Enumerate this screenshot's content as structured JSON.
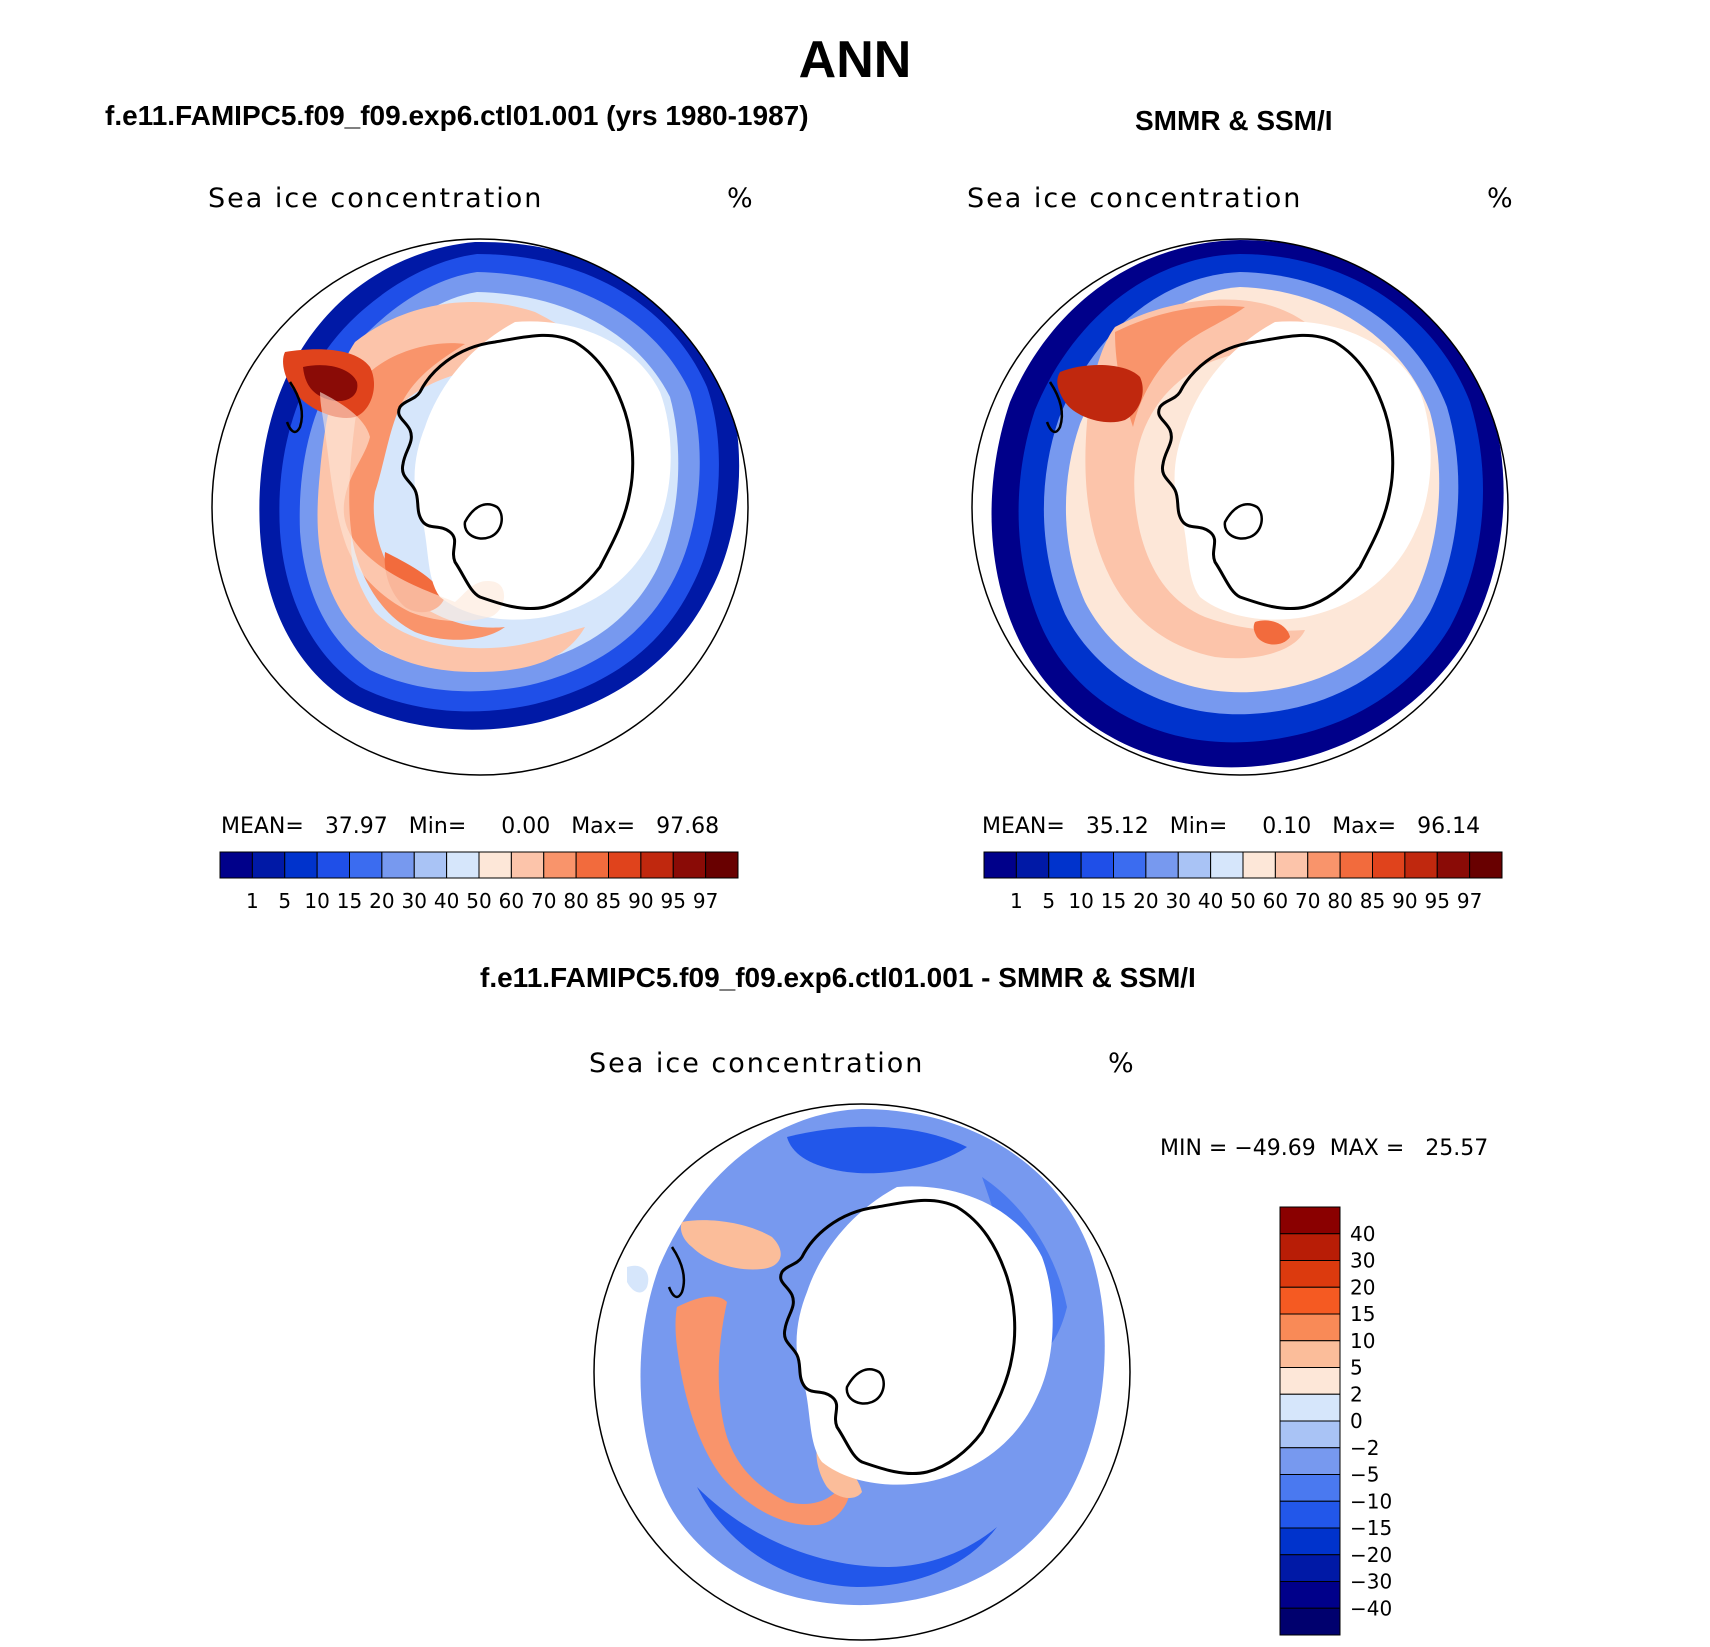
{
  "figure": {
    "title": "ANN",
    "panels": [
      {
        "id": "model",
        "title": "f.e11.FAMIPC5.f09_f09.exp6.ctl01.001 (yrs 1980-1987)",
        "variable": "Sea ice concentration",
        "units": "%",
        "stats": {
          "mean_label": "MEAN=",
          "mean": "37.97",
          "min_label": "Min=",
          "min": "0.00",
          "max_label": "Max=",
          "max": "97.68"
        }
      },
      {
        "id": "obs",
        "title": "SMMR & SSM/I",
        "variable": "Sea ice concentration",
        "units": "%",
        "stats": {
          "mean_label": "MEAN=",
          "mean": "35.12",
          "min_label": "Min=",
          "min": "0.10",
          "max_label": "Max=",
          "max": "96.14"
        }
      },
      {
        "id": "diff",
        "title": "f.e11.FAMIPC5.f09_f09.exp6.ctl01.001 - SMMR & SSM/I",
        "variable": "Sea ice concentration",
        "units": "%",
        "stats_text": "MIN = −49.69  MAX =   25.57"
      }
    ]
  },
  "chart_data": [
    {
      "type": "map",
      "title": "f.e11.FAMIPC5.f09_f09.exp6.ctl01.001 (yrs 1980-1987)",
      "variable": "Sea ice concentration",
      "units": "%",
      "projection": "South polar stereographic",
      "mean": 37.97,
      "min": 0.0,
      "max": 97.68,
      "contour_levels": [
        1,
        5,
        10,
        15,
        20,
        30,
        40,
        50,
        60,
        70,
        80,
        85,
        90,
        95,
        97
      ]
    },
    {
      "type": "map",
      "title": "SMMR & SSM/I",
      "variable": "Sea ice concentration",
      "units": "%",
      "projection": "South polar stereographic",
      "mean": 35.12,
      "min": 0.1,
      "max": 96.14,
      "contour_levels": [
        1,
        5,
        10,
        15,
        20,
        30,
        40,
        50,
        60,
        70,
        80,
        85,
        90,
        95,
        97
      ]
    },
    {
      "type": "map",
      "title": "f.e11.FAMIPC5.f09_f09.exp6.ctl01.001 - SMMR & SSM/I",
      "variable": "Sea ice concentration",
      "units": "%",
      "projection": "South polar stereographic",
      "min": -49.69,
      "max": 25.57,
      "contour_levels": [
        -40,
        -30,
        -20,
        -15,
        -10,
        -5,
        -2,
        0,
        2,
        5,
        10,
        15,
        20,
        30,
        40
      ]
    }
  ],
  "colorbars": {
    "abs": {
      "labels": [
        "1",
        "5",
        "10",
        "15",
        "20",
        "30",
        "40",
        "50",
        "60",
        "70",
        "80",
        "85",
        "90",
        "95",
        "97"
      ],
      "colors": [
        "#00008a",
        "#0019a6",
        "#0033cc",
        "#1f4fe8",
        "#3b6cf0",
        "#7799ef",
        "#a9c3f5",
        "#d6e6fb",
        "#fde7d8",
        "#fcc4aa",
        "#f9946b",
        "#f26b3d",
        "#e0431c",
        "#c0280e",
        "#8a0b06",
        "#680000"
      ]
    },
    "diff": {
      "labels": [
        "40",
        "30",
        "20",
        "15",
        "10",
        "5",
        "2",
        "0",
        "−2",
        "−5",
        "−10",
        "−15",
        "−20",
        "−30",
        "−40"
      ],
      "colors": [
        "#8a0000",
        "#b81d06",
        "#dc3a0e",
        "#f55a22",
        "#f98a57",
        "#fbbd9a",
        "#fde7d8",
        "#d6e6fb",
        "#a9c3f5",
        "#7799ef",
        "#4a79f0",
        "#2257ea",
        "#0033cc",
        "#0019a6",
        "#00008a",
        "#00006e"
      ]
    }
  },
  "icons": {
    "continent": "antarctica-outline",
    "ice": "sea-ice-field"
  }
}
